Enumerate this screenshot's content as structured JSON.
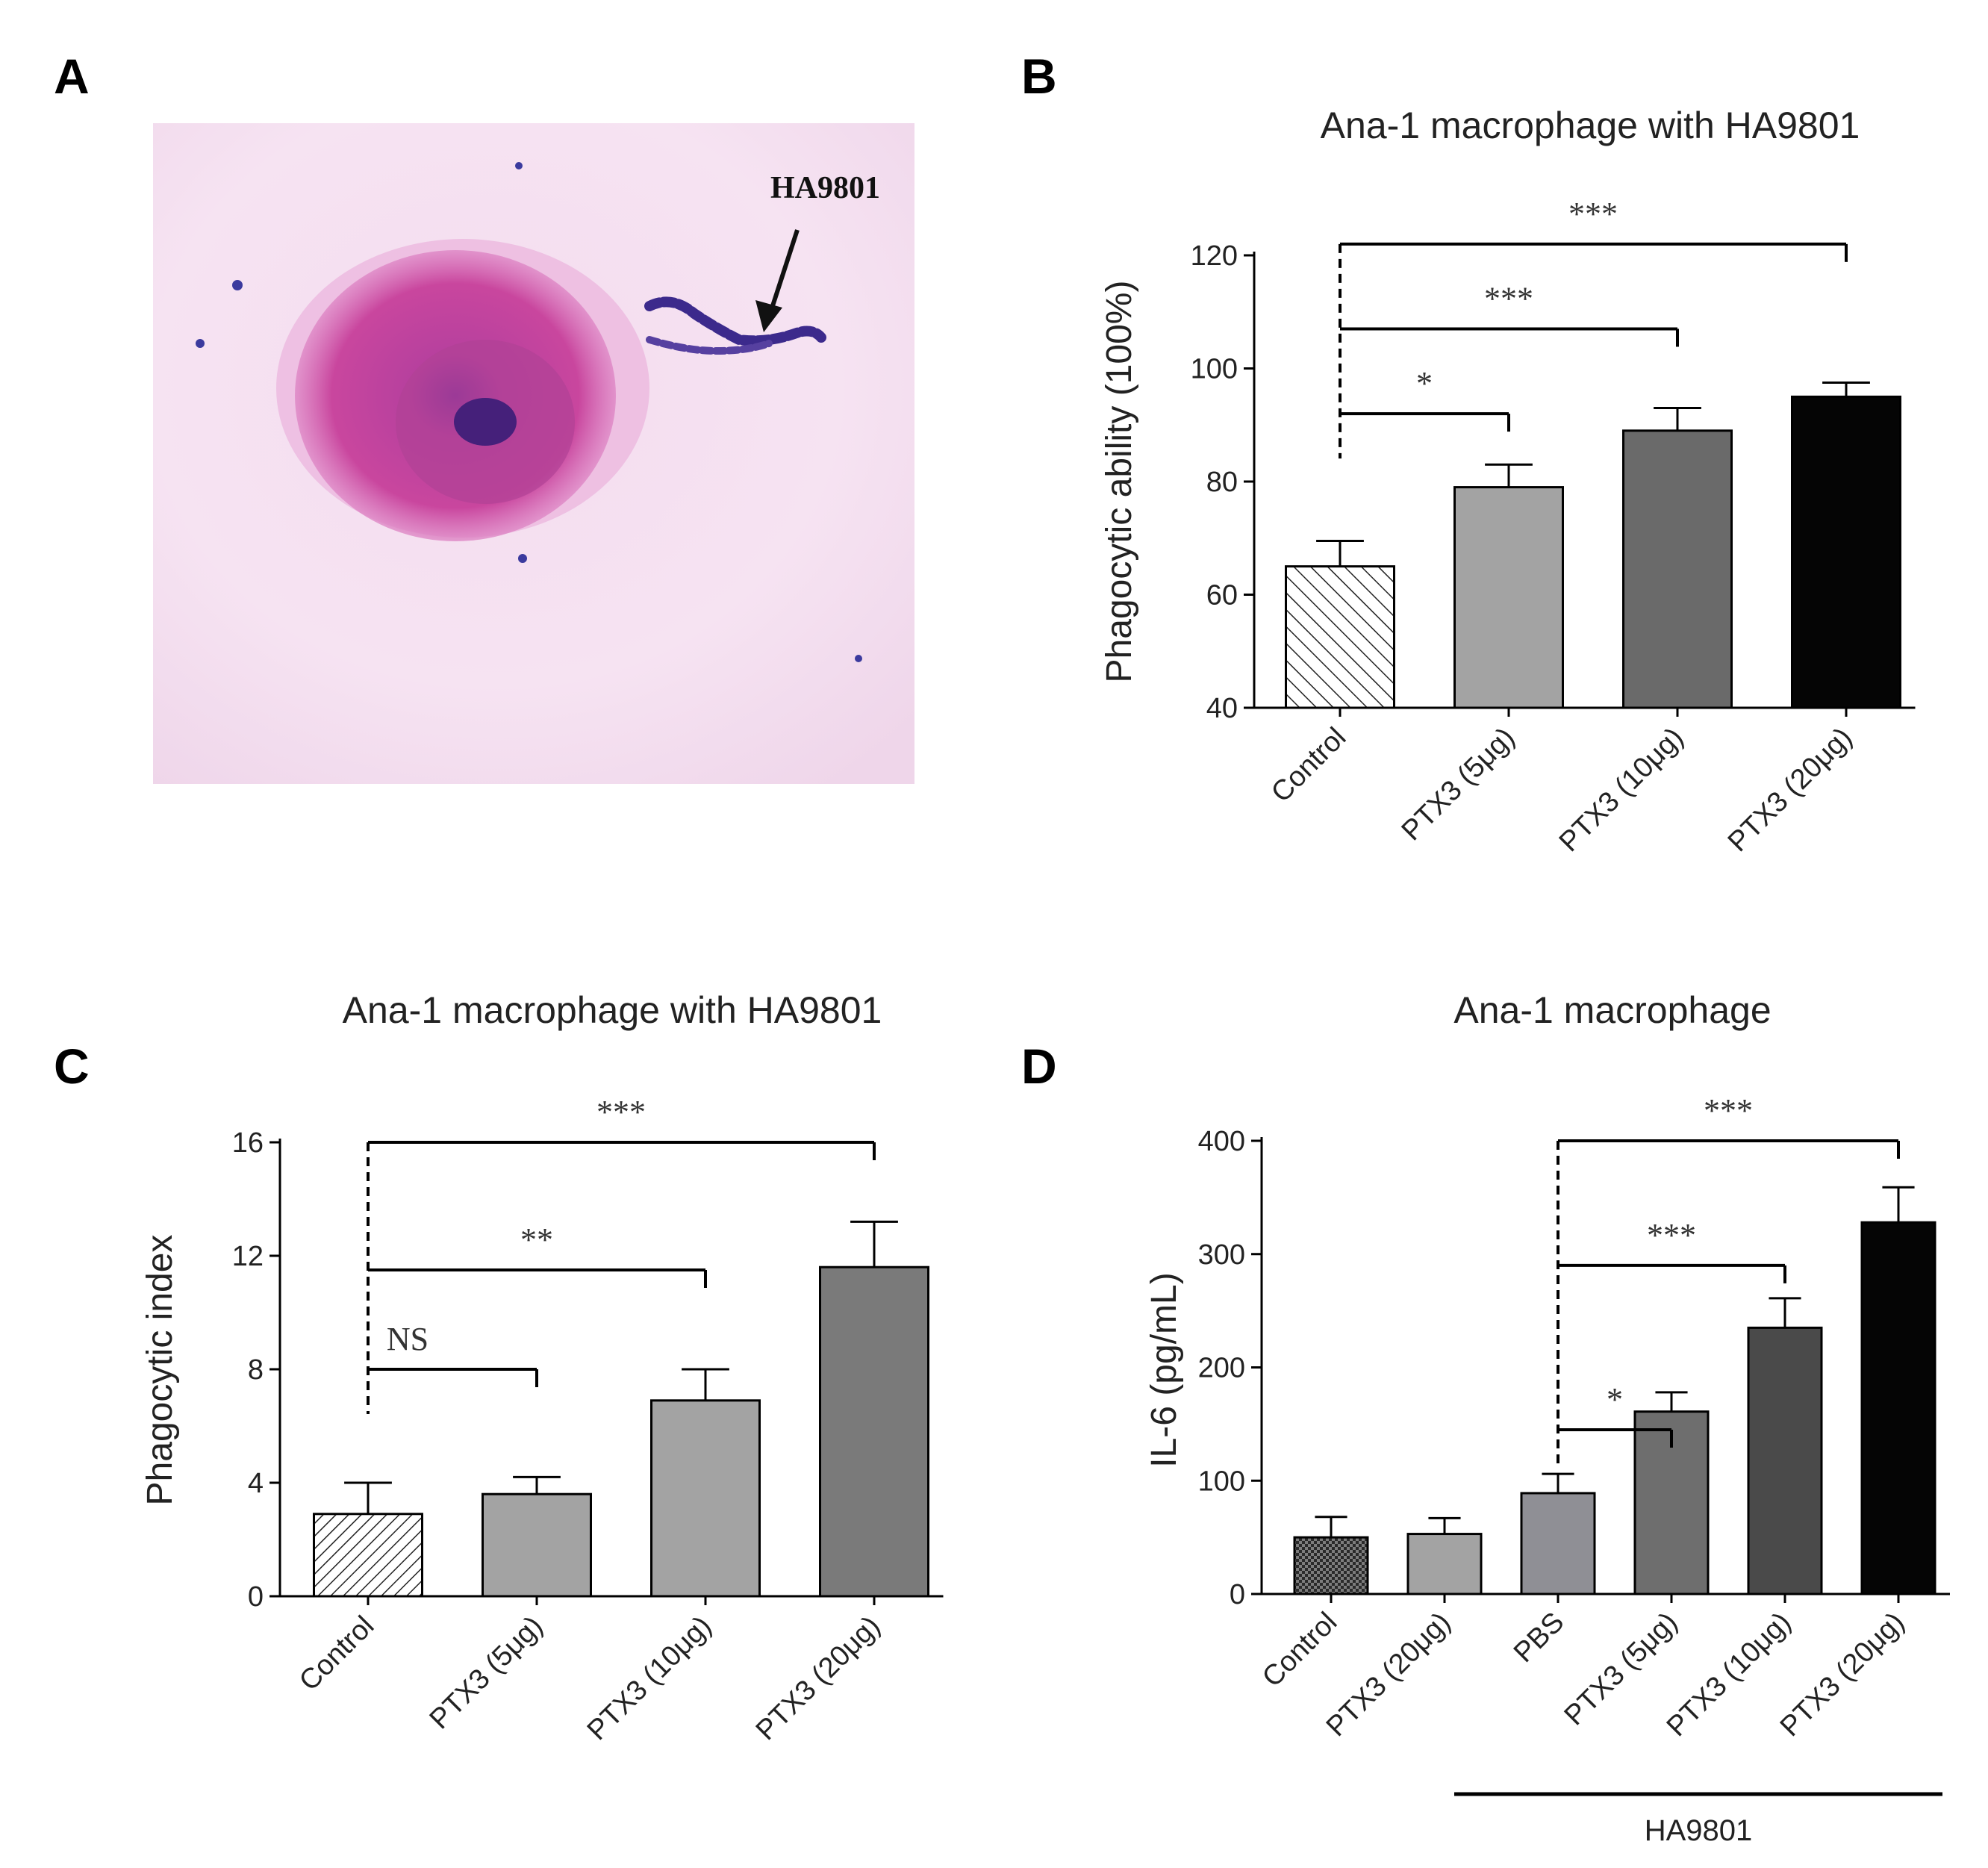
{
  "panels": {
    "A": "A",
    "B": "B",
    "C": "C",
    "D": "D"
  },
  "micrograph": {
    "label": "HA9801"
  },
  "chart_data": [
    {
      "id": "B",
      "type": "bar",
      "title": "Ana-1 macrophage with HA9801",
      "ylabel": "Phagocytic ability (100%)",
      "xlabel": "",
      "ylim": [
        40,
        120
      ],
      "yticks": [
        40,
        60,
        80,
        100,
        120
      ],
      "categories": [
        "Control",
        "PTX3 (5μg)",
        "PTX3 (10μg)",
        "PTX3 (20μg)"
      ],
      "values": [
        65,
        79,
        89,
        95
      ],
      "errors": [
        4.5,
        4,
        4,
        2.5
      ],
      "fills": [
        "hatch",
        "#a3a3a3",
        "#6a6a6a",
        "#050505"
      ],
      "significance": [
        {
          "from": 0,
          "to": 1,
          "y": 92,
          "label": "*"
        },
        {
          "from": 0,
          "to": 2,
          "y": 107,
          "label": "***"
        },
        {
          "from": 0,
          "to": 3,
          "y": 122,
          "label": "***"
        }
      ]
    },
    {
      "id": "C",
      "type": "bar",
      "title": "Ana-1 macrophage with HA9801",
      "ylabel": "Phagocytic index",
      "xlabel": "",
      "ylim": [
        0,
        16
      ],
      "yticks": [
        0,
        4,
        8,
        12,
        16
      ],
      "categories": [
        "Control",
        "PTX3 (5μg)",
        "PTX3 (10μg)",
        "PTX3 (20μg)"
      ],
      "values": [
        2.9,
        3.6,
        6.9,
        11.6
      ],
      "errors": [
        1.1,
        0.6,
        1.1,
        1.6
      ],
      "fills": [
        "hatch",
        "#a3a3a3",
        "#a3a3a3",
        "#7a7a7a"
      ],
      "significance": [
        {
          "from": 0,
          "to": 1,
          "y": 8,
          "label": "NS"
        },
        {
          "from": 0,
          "to": 2,
          "y": 11.5,
          "label": "**"
        },
        {
          "from": 0,
          "to": 3,
          "y": 16,
          "label": "***"
        }
      ]
    },
    {
      "id": "D",
      "type": "bar",
      "title": "Ana-1 macrophage",
      "ylabel": "IL-6 (pg/mL)",
      "xlabel": "",
      "ylim": [
        0,
        400
      ],
      "yticks": [
        0,
        100,
        200,
        300,
        400
      ],
      "categories": [
        "Control",
        "PTX3 (20μg)",
        "PBS",
        "PTX3 (5μg)",
        "PTX3 (10μg)",
        "PTX3 (20μg)"
      ],
      "values": [
        50,
        53,
        89,
        161,
        235,
        328
      ],
      "errors": [
        18,
        14,
        17,
        17,
        26,
        31
      ],
      "fills": [
        "crosshatch",
        "#a3a3a3",
        "#8f8f95",
        "#6e6e6e",
        "#4a4a4a",
        "#050505"
      ],
      "significance": [
        {
          "from": 2,
          "to": 3,
          "y": 145,
          "label": "*"
        },
        {
          "from": 2,
          "to": 4,
          "y": 290,
          "label": "***"
        },
        {
          "from": 2,
          "to": 5,
          "y": 400,
          "label": "***"
        }
      ],
      "group_label": {
        "from": 2,
        "to": 5,
        "label": "HA9801"
      }
    }
  ]
}
